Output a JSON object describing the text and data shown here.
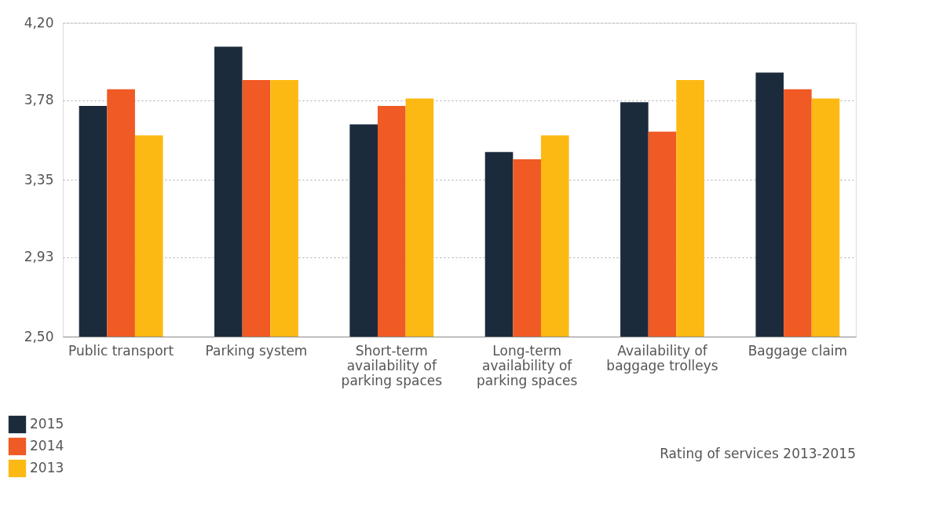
{
  "chart_data": {
    "type": "bar",
    "categories": [
      "Public transport",
      "Parking system",
      "Short-term availability of parking spaces",
      "Long-term availability of parking spaces",
      "Availability of baggage trolleys",
      "Baggage claim"
    ],
    "series": [
      {
        "name": "2015",
        "color": "#1c2b3c",
        "values": [
          3.75,
          4.07,
          3.65,
          3.5,
          3.77,
          3.93
        ]
      },
      {
        "name": "2014",
        "color": "#f05a24",
        "values": [
          3.84,
          3.89,
          3.75,
          3.46,
          3.61,
          3.84
        ]
      },
      {
        "name": "2013",
        "color": "#fdb913",
        "values": [
          3.59,
          3.89,
          3.79,
          3.59,
          3.89,
          3.79
        ]
      }
    ],
    "ylim": [
      2.5,
      4.2
    ],
    "yticks": [
      {
        "value": 2.5,
        "label": "2,50"
      },
      {
        "value": 2.93,
        "label": "2,93"
      },
      {
        "value": 3.35,
        "label": "3,35"
      },
      {
        "value": 3.78,
        "label": "3,78"
      },
      {
        "value": 4.2,
        "label": "4,20"
      }
    ],
    "grid": "y",
    "legend": "bottom left",
    "annotations": [
      "Rating of services 2013-2015"
    ]
  }
}
